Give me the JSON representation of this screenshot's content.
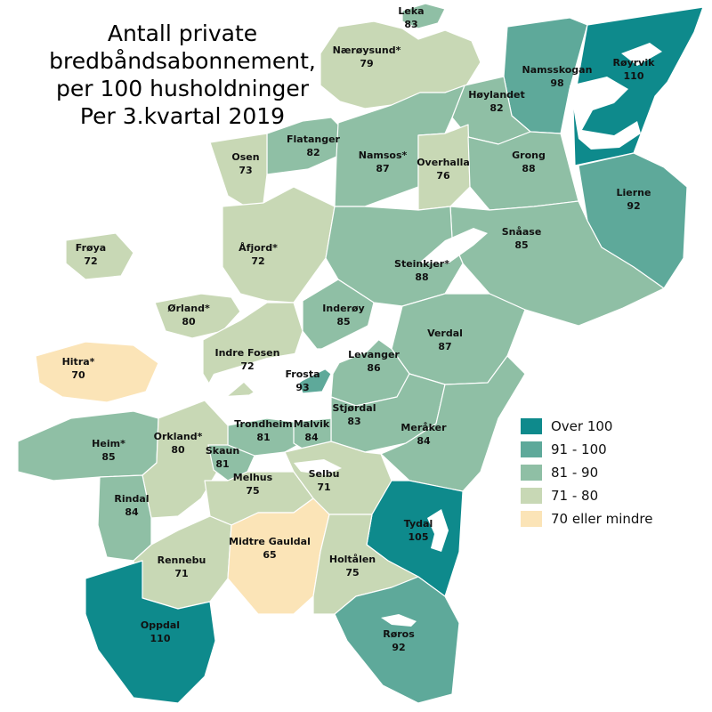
{
  "title": {
    "lines": [
      "Antall private",
      "bredbåndsabonnement,",
      "per 100 husholdninger",
      "Per 3.kvartal 2019"
    ]
  },
  "colors": {
    "over_100": "#0e8a8c",
    "91_100": "#5ea99a",
    "81_90": "#8fbfa5",
    "71_80": "#c8d8b5",
    "70_or_less": "#fbe4b7"
  },
  "legend": [
    {
      "label": "Over 100",
      "color_key": "over_100"
    },
    {
      "label": "91 - 100",
      "color_key": "91_100"
    },
    {
      "label": "81 - 90",
      "color_key": "81_90"
    },
    {
      "label": "71 - 80",
      "color_key": "71_80"
    },
    {
      "label": "70 eller mindre",
      "color_key": "70_or_less"
    }
  ],
  "municipalities": [
    {
      "name": "Leka",
      "value": "83",
      "color_key": "81_90"
    },
    {
      "name": "Nærøysund*",
      "value": "79",
      "color_key": "71_80"
    },
    {
      "name": "Namsskogan",
      "value": "98",
      "color_key": "91_100"
    },
    {
      "name": "Røyrvik",
      "value": "110",
      "color_key": "over_100"
    },
    {
      "name": "Høylandet",
      "value": "82",
      "color_key": "81_90"
    },
    {
      "name": "Flatanger",
      "value": "82",
      "color_key": "81_90"
    },
    {
      "name": "Osen",
      "value": "73",
      "color_key": "71_80"
    },
    {
      "name": "Namsos*",
      "value": "87",
      "color_key": "81_90"
    },
    {
      "name": "Overhalla",
      "value": "76",
      "color_key": "71_80"
    },
    {
      "name": "Grong",
      "value": "88",
      "color_key": "81_90"
    },
    {
      "name": "Lierne",
      "value": "92",
      "color_key": "91_100"
    },
    {
      "name": "Frøya",
      "value": "72",
      "color_key": "71_80"
    },
    {
      "name": "Åfjord*",
      "value": "72",
      "color_key": "71_80"
    },
    {
      "name": "Snåase",
      "value": "85",
      "color_key": "81_90"
    },
    {
      "name": "Steinkjer*",
      "value": "88",
      "color_key": "81_90"
    },
    {
      "name": "Ørland*",
      "value": "80",
      "color_key": "71_80"
    },
    {
      "name": "Inderøy",
      "value": "85",
      "color_key": "81_90"
    },
    {
      "name": "Verdal",
      "value": "87",
      "color_key": "81_90"
    },
    {
      "name": "Hitra*",
      "value": "70",
      "color_key": "70_or_less"
    },
    {
      "name": "Indre Fosen",
      "value": "72",
      "color_key": "71_80"
    },
    {
      "name": "Levanger",
      "value": "86",
      "color_key": "81_90"
    },
    {
      "name": "Frosta",
      "value": "93",
      "color_key": "91_100"
    },
    {
      "name": "Stjørdal",
      "value": "83",
      "color_key": "81_90"
    },
    {
      "name": "Trondheim",
      "value": "81",
      "color_key": "81_90"
    },
    {
      "name": "Malvik",
      "value": "84",
      "color_key": "81_90"
    },
    {
      "name": "Meråker",
      "value": "84",
      "color_key": "81_90"
    },
    {
      "name": "Heim*",
      "value": "85",
      "color_key": "81_90"
    },
    {
      "name": "Orkland*",
      "value": "80",
      "color_key": "71_80"
    },
    {
      "name": "Skaun",
      "value": "81",
      "color_key": "81_90"
    },
    {
      "name": "Melhus",
      "value": "75",
      "color_key": "71_80"
    },
    {
      "name": "Selbu",
      "value": "71",
      "color_key": "71_80"
    },
    {
      "name": "Rindal",
      "value": "84",
      "color_key": "81_90"
    },
    {
      "name": "Tydal",
      "value": "105",
      "color_key": "over_100"
    },
    {
      "name": "Rennebu",
      "value": "71",
      "color_key": "71_80"
    },
    {
      "name": "Midtre Gauldal",
      "value": "65",
      "color_key": "70_or_less"
    },
    {
      "name": "Holtålen",
      "value": "75",
      "color_key": "71_80"
    },
    {
      "name": "Oppdal",
      "value": "110",
      "color_key": "over_100"
    },
    {
      "name": "Røros",
      "value": "92",
      "color_key": "91_100"
    }
  ]
}
